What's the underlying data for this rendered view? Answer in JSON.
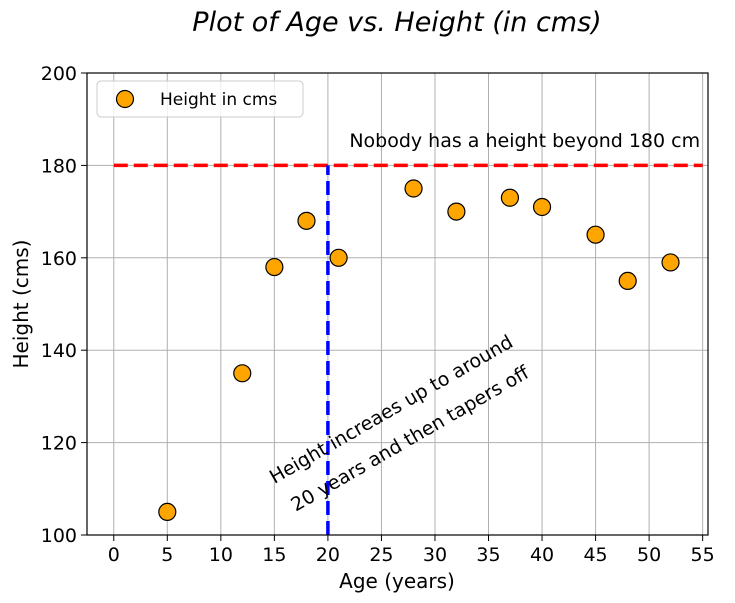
{
  "chart_data": {
    "type": "scatter",
    "title": "Plot of Age vs. Height (in cms)",
    "xlabel": "Age (years)",
    "ylabel": "Height (cms)",
    "xlim": [
      -2.5,
      55.5
    ],
    "ylim": [
      100,
      200
    ],
    "x_ticks": [
      0,
      5,
      10,
      15,
      20,
      25,
      30,
      35,
      40,
      45,
      50,
      55
    ],
    "y_ticks": [
      100,
      120,
      140,
      160,
      180,
      200
    ],
    "grid": true,
    "legend_position": "top-left",
    "series": [
      {
        "name": "Height in cms",
        "color": "#FFA500",
        "edge_color": "#000000",
        "x": [
          5,
          12,
          15,
          18,
          21,
          28,
          32,
          37,
          40,
          45,
          48,
          52
        ],
        "y": [
          105,
          135,
          158,
          168,
          160,
          175,
          170,
          173,
          171,
          165,
          155,
          159
        ]
      }
    ],
    "reference_lines": [
      {
        "orientation": "horizontal",
        "value": 180,
        "from": 0,
        "to": 55,
        "color": "#FF0000",
        "style": "dashed"
      },
      {
        "orientation": "vertical",
        "value": 20,
        "color": "#0000FF",
        "style": "dashed"
      }
    ],
    "annotations": [
      {
        "text": "Nobody has a height beyond 180 cm",
        "x": 22,
        "y": 184,
        "rotation": 0
      },
      {
        "text": "Height increaes up to around",
        "x": 15,
        "y": 111,
        "rotation": 30
      },
      {
        "text": "20 years and then tapers off",
        "x": 17,
        "y": 105,
        "rotation": 30
      }
    ]
  }
}
